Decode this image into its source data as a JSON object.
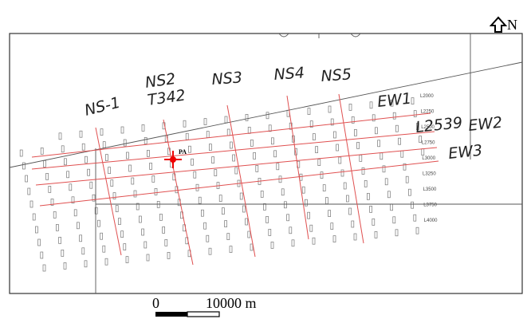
{
  "north": "N",
  "lines": {
    "ns": [
      "NS-1",
      "NS2",
      "NS3",
      "NS4",
      "NS5"
    ],
    "ew": [
      "EW1",
      "EW2",
      "EW3"
    ]
  },
  "annotations": {
    "station": "T342",
    "line_number": "L2539"
  },
  "point": "PA",
  "line_labels": [
    "L2000",
    "L2250",
    "L2500",
    "L2750",
    "L3000",
    "L3250",
    "L3500",
    "L3750",
    "L4000"
  ],
  "scale_bar": {
    "start": "0",
    "end": "10000 m"
  }
}
